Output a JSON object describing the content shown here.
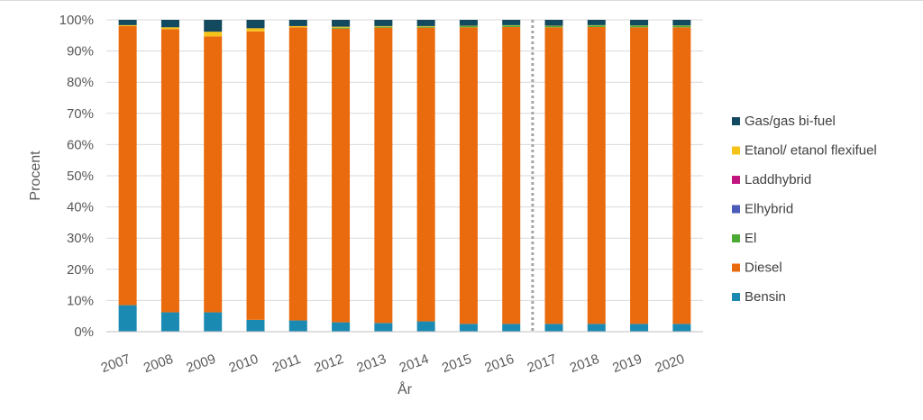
{
  "chart_data": {
    "type": "bar",
    "stacked": true,
    "categories": [
      "2007",
      "2008",
      "2009",
      "2010",
      "2011",
      "2012",
      "2013",
      "2014",
      "2015",
      "2016",
      "2017",
      "2018",
      "2019",
      "2020"
    ],
    "xlabel": "År",
    "ylabel": "Procent",
    "ylim": [
      0,
      100
    ],
    "y_ticks": [
      "0%",
      "10%",
      "20%",
      "30%",
      "40%",
      "50%",
      "60%",
      "70%",
      "80%",
      "90%",
      "100%"
    ],
    "grid": true,
    "legend_position": "right",
    "divider_after_category": "2016",
    "series": [
      {
        "name": "Bensin",
        "color": "#1b8ab3",
        "values": [
          8.5,
          6.2,
          6.2,
          3.8,
          3.6,
          3.0,
          2.8,
          3.3,
          2.5,
          2.5,
          2.5,
          2.5,
          2.5,
          2.5
        ]
      },
      {
        "name": "Diesel",
        "color": "#ea6b0e",
        "values": [
          89.5,
          90.8,
          88.5,
          92.5,
          94.0,
          94.2,
          94.7,
          94.2,
          95.1,
          95.2,
          95.1,
          95.2,
          95.1,
          95.1
        ]
      },
      {
        "name": "El",
        "color": "#4daa35",
        "values": [
          0,
          0,
          0,
          0,
          0,
          0.3,
          0.3,
          0.3,
          0.4,
          0.5,
          0.4,
          0.5,
          0.5,
          0.5
        ]
      },
      {
        "name": "Elhybrid",
        "color": "#4a5cb8",
        "values": [
          0,
          0,
          0,
          0,
          0,
          0,
          0,
          0,
          0,
          0,
          0,
          0,
          0,
          0
        ]
      },
      {
        "name": "Laddhybrid",
        "color": "#c0147f",
        "values": [
          0,
          0,
          0,
          0,
          0,
          0,
          0,
          0,
          0,
          0,
          0,
          0,
          0,
          0
        ]
      },
      {
        "name": "Etanol/ etanol flexifuel",
        "color": "#f5c218",
        "values": [
          0.3,
          0.6,
          1.5,
          1.0,
          0.4,
          0.3,
          0.2,
          0.2,
          0.1,
          0.1,
          0.1,
          0.1,
          0.1,
          0.1
        ]
      },
      {
        "name": "Gas/gas bi-fuel",
        "color": "#12495e",
        "values": [
          1.7,
          2.4,
          3.8,
          2.7,
          2.0,
          2.2,
          2.0,
          2.0,
          1.9,
          1.7,
          1.9,
          1.7,
          1.8,
          1.8
        ]
      }
    ]
  }
}
